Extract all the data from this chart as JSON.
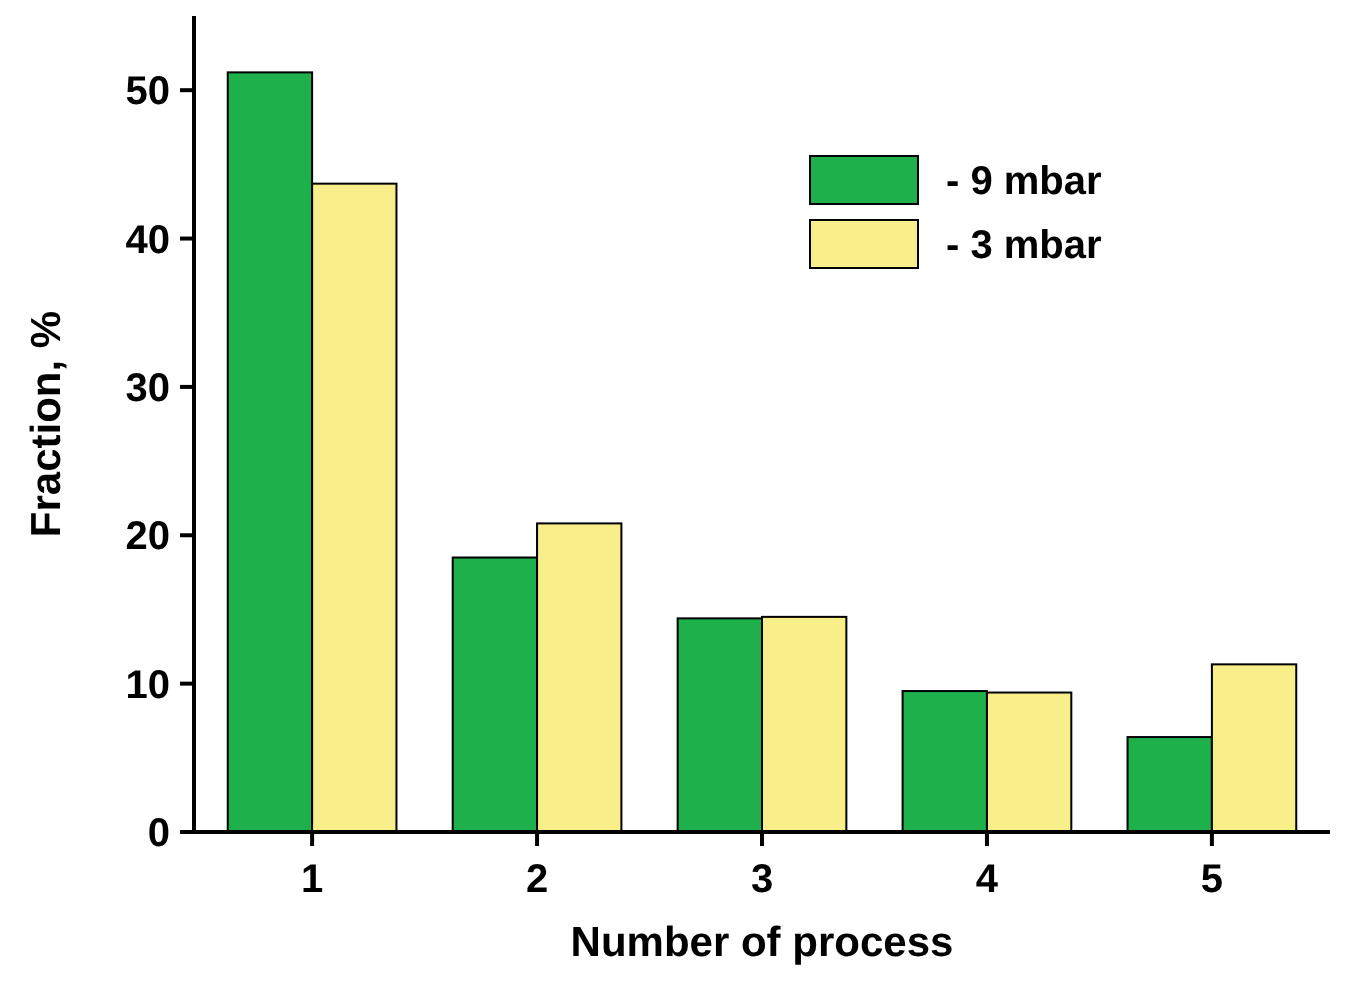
{
  "chart_data": {
    "type": "bar",
    "xlabel": "Number of process",
    "ylabel": "Fraction, %",
    "categories": [
      "1",
      "2",
      "3",
      "4",
      "5"
    ],
    "series": [
      {
        "name": "- 9 mbar",
        "color": "#1db04b",
        "values": [
          51.2,
          18.5,
          14.4,
          9.5,
          6.4
        ]
      },
      {
        "name": "- 3 mbar",
        "color": "#f8ee8a",
        "values": [
          43.7,
          20.8,
          14.5,
          9.4,
          11.3
        ]
      }
    ],
    "ylim": [
      0,
      55
    ],
    "yticks": [
      0,
      10,
      20,
      30,
      40,
      50
    ],
    "legend": "top right",
    "grid": false
  }
}
